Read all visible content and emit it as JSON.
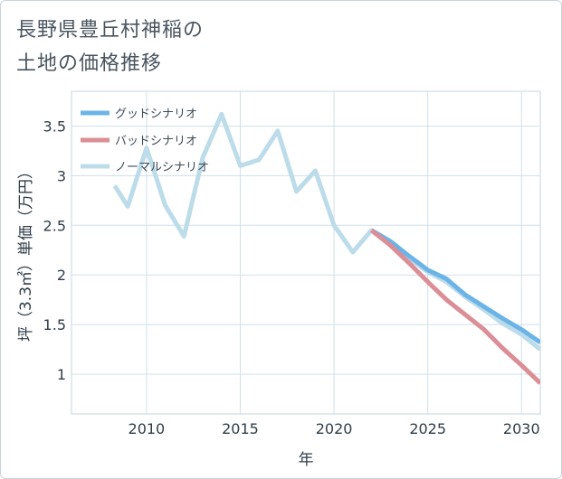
{
  "chart_data": {
    "type": "line",
    "title": "長野県豊丘村神稲の\n土地の価格推移",
    "title_lines": [
      "長野県豊丘村神稲の",
      "土地の価格推移"
    ],
    "xlabel": "年",
    "ylabel": "坪（3.3㎡）単価（万円）",
    "xlim": [
      2006,
      2031
    ],
    "ylim": [
      0.6,
      3.85
    ],
    "xticks": [
      2010,
      2015,
      2020,
      2025,
      2030
    ],
    "yticks": [
      1,
      1.5,
      2,
      2.5,
      3,
      3.5
    ],
    "xtick_labels": [
      "2010",
      "2015",
      "2020",
      "2025",
      "2030"
    ],
    "ytick_labels": [
      "1",
      "1.5",
      "2",
      "2.5",
      "3",
      "3.5"
    ],
    "grid": true,
    "legend_position": "top-left",
    "series": [
      {
        "name": "グッドシナリオ",
        "color": "#6cb4e8",
        "x": [
          2022,
          2023,
          2024,
          2025,
          2026,
          2027,
          2028,
          2029,
          2030,
          2031
        ],
        "y": [
          2.45,
          2.34,
          2.19,
          2.05,
          1.96,
          1.8,
          1.68,
          1.56,
          1.45,
          1.32
        ]
      },
      {
        "name": "バッドシナリオ",
        "color": "#dc8e96",
        "x": [
          2022,
          2023,
          2024,
          2025,
          2026,
          2027,
          2028,
          2029,
          2030,
          2031
        ],
        "y": [
          2.45,
          2.3,
          2.12,
          1.93,
          1.75,
          1.6,
          1.45,
          1.26,
          1.09,
          0.91
        ]
      },
      {
        "name": "ノーマルシナリオ",
        "color": "#bcdcea",
        "x": [
          2008.3,
          2009,
          2010,
          2011,
          2012,
          2013,
          2014,
          2015,
          2016,
          2017,
          2018,
          2019,
          2020,
          2021,
          2022,
          2023,
          2024,
          2025,
          2026,
          2027,
          2028,
          2029,
          2030,
          2031
        ],
        "y": [
          2.9,
          2.69,
          3.28,
          2.7,
          2.39,
          3.18,
          3.62,
          3.1,
          3.16,
          3.45,
          2.84,
          3.05,
          2.5,
          2.23,
          2.45,
          2.32,
          2.17,
          2.03,
          1.93,
          1.78,
          1.65,
          1.51,
          1.4,
          1.25
        ]
      }
    ]
  }
}
